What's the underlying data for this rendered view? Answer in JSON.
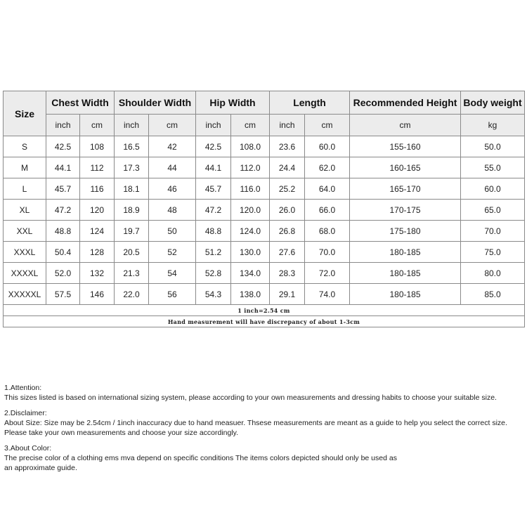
{
  "headers": [
    "Size",
    "Chest Width",
    "Shoulder Width",
    "Hip Width",
    "Length",
    "Recommended Height",
    "Body weight"
  ],
  "units": [
    "inch",
    "cm",
    "inch",
    "cm",
    "inch",
    "cm",
    "inch",
    "cm",
    "cm",
    "kg"
  ],
  "rows": [
    [
      "S",
      "42.5",
      "108",
      "16.5",
      "42",
      "42.5",
      "108.0",
      "23.6",
      "60.0",
      "155-160",
      "50.0"
    ],
    [
      "M",
      "44.1",
      "112",
      "17.3",
      "44",
      "44.1",
      "112.0",
      "24.4",
      "62.0",
      "160-165",
      "55.0"
    ],
    [
      "L",
      "45.7",
      "116",
      "18.1",
      "46",
      "45.7",
      "116.0",
      "25.2",
      "64.0",
      "165-170",
      "60.0"
    ],
    [
      "XL",
      "47.2",
      "120",
      "18.9",
      "48",
      "47.2",
      "120.0",
      "26.0",
      "66.0",
      "170-175",
      "65.0"
    ],
    [
      "XXL",
      "48.8",
      "124",
      "19.7",
      "50",
      "48.8",
      "124.0",
      "26.8",
      "68.0",
      "175-180",
      "70.0"
    ],
    [
      "XXXL",
      "50.4",
      "128",
      "20.5",
      "52",
      "51.2",
      "130.0",
      "27.6",
      "70.0",
      "180-185",
      "75.0"
    ],
    [
      "XXXXL",
      "52.0",
      "132",
      "21.3",
      "54",
      "52.8",
      "134.0",
      "28.3",
      "72.0",
      "180-185",
      "80.0"
    ],
    [
      "XXXXXL",
      "57.5",
      "146",
      "22.0",
      "56",
      "54.3",
      "138.0",
      "29.1",
      "74.0",
      "180-185",
      "85.0"
    ]
  ],
  "conversion_note": "1 inch=2.54 cm",
  "measurement_note": "Hand measurement will have discrepancy of about 1-3cm",
  "notes": {
    "attention_title": "1.Attention:",
    "attention_text": "This sizes listed is based on international sizing system, please according to your own measurements and dressing habits to choose your suitable size.",
    "disclaimer_title": "2.Disclaimer:",
    "disclaimer_text1": "About Size: Size may be 2.54cm / 1inch inaccuracy due to hand measuer. Thsese measurements are meant as a guide to help you select the correct size.",
    "disclaimer_text2": "Please take your own measurements and choose your size accordingly.",
    "color_title": "3.About Color:",
    "color_text1": "The precise color of a clothing ems mva depend on specific conditions The items colors depicted should only be used as",
    "color_text2": "an approximate guide."
  }
}
